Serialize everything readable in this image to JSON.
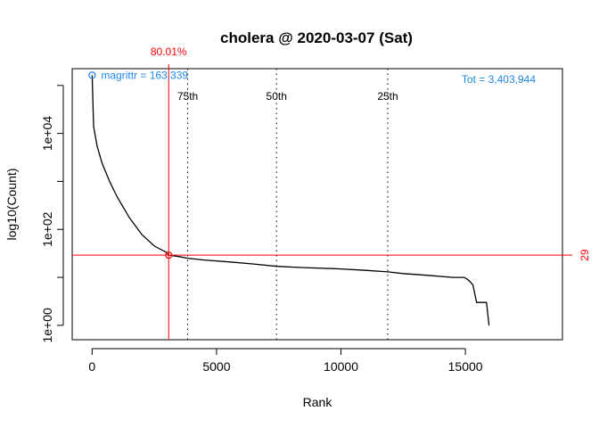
{
  "chart_data": {
    "type": "line",
    "title": "cholera @ 2020-03-07 (Sat)",
    "xlabel": "Rank",
    "ylabel": "log10(Count)",
    "xlim": [
      -800,
      18900
    ],
    "ylim_log10": [
      -0.3,
      5.35
    ],
    "y_scale": "log10",
    "grid": false,
    "x_ticks": [
      {
        "value": 0,
        "label": "0"
      },
      {
        "value": 5000,
        "label": "5000"
      },
      {
        "value": 10000,
        "label": "10000"
      },
      {
        "value": 15000,
        "label": "15000"
      }
    ],
    "y_ticks": [
      {
        "value": 1,
        "label": "1e+00"
      },
      {
        "value": 100,
        "label": "1e+02"
      },
      {
        "value": 10000,
        "label": "1e+04"
      }
    ],
    "y_minor_ticks": [
      10,
      1000,
      100000
    ],
    "series": [
      {
        "color": "#000000",
        "x": [
          1,
          60,
          200,
          400,
          700,
          1000,
          1500,
          2000,
          2500,
          3000,
          3077,
          3500,
          3840,
          4500,
          5500,
          6500,
          7410,
          8500,
          10000,
          11000,
          11880,
          12500,
          13500,
          14500,
          14950,
          15100,
          15200,
          15300,
          15450,
          15700,
          15850,
          15950
        ],
        "y": [
          163339,
          14000,
          5500,
          2400,
          1000,
          480,
          175,
          78,
          45,
          33,
          29,
          27,
          25,
          23,
          21,
          19,
          17,
          16,
          15,
          14,
          13,
          12,
          11,
          10,
          10,
          9,
          8,
          7,
          3,
          3,
          3,
          1
        ]
      }
    ],
    "top_point": {
      "x": 1,
      "y": 163339,
      "label": "magrittr = 163,339",
      "color": "#1E88E5"
    },
    "total_label": "Tot =  3,403,944",
    "total_color": "#1E88E5",
    "quantile_lines": [
      {
        "x": 3840,
        "label": "75th"
      },
      {
        "x": 7410,
        "label": "50th"
      },
      {
        "x": 11880,
        "label": "25th"
      }
    ],
    "cutoff": {
      "x": 3077,
      "y": 29,
      "x_label": "80.01%",
      "y_label": "29",
      "color": "#FF0000"
    }
  }
}
